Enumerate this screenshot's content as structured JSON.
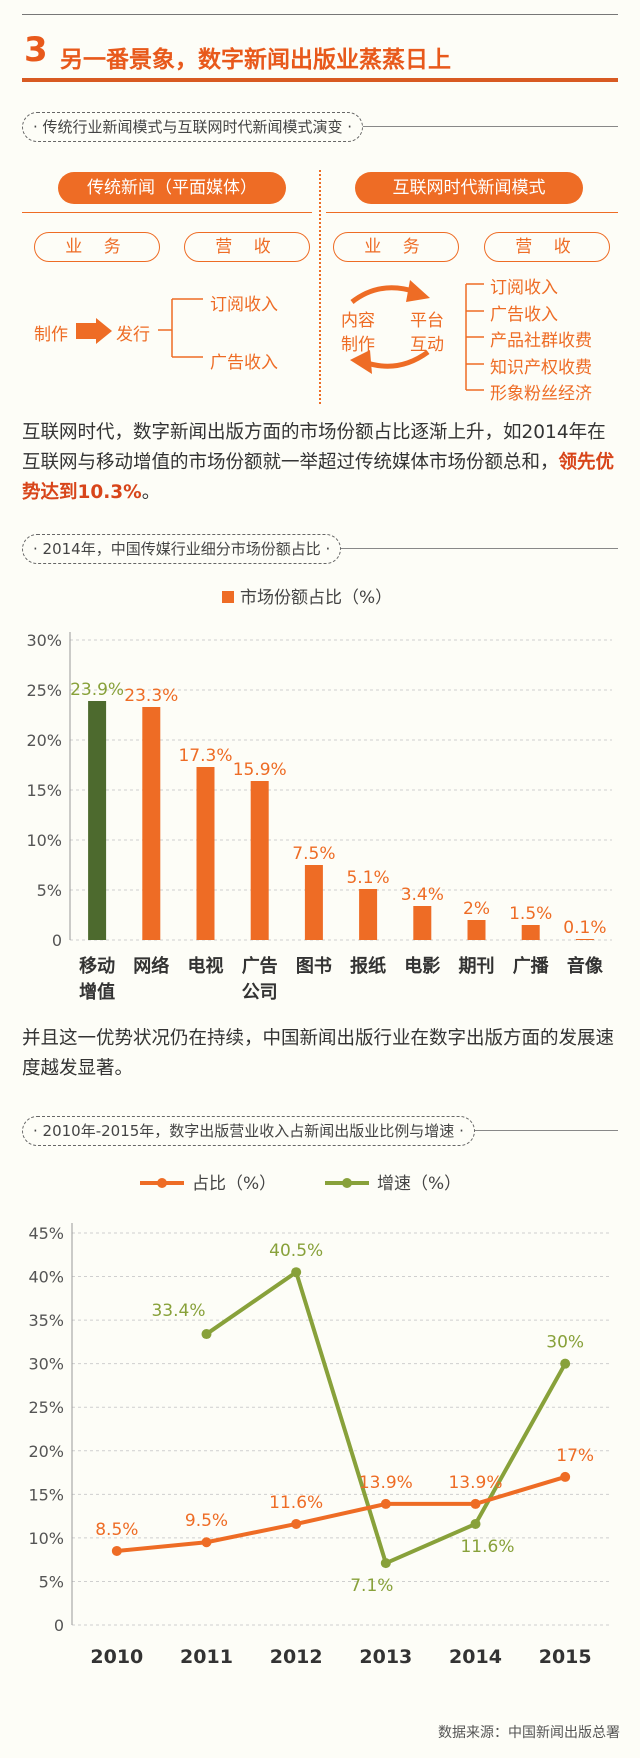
{
  "header": {
    "number": "3",
    "title": "另一番景象，数字新闻出版业蒸蒸日上"
  },
  "section1": {
    "pill": "· 传统行业新闻模式与互联网时代新闻模式演变 ·",
    "left": {
      "title": "传统新闻（平面媒体）",
      "business": "业 务",
      "revenue": "营 收",
      "flow": [
        "制作",
        "发行"
      ],
      "incomes": [
        "订阅收入",
        "广告收入"
      ]
    },
    "right": {
      "title": "互联网时代新闻模式",
      "business": "业 务",
      "revenue": "营 收",
      "cycle": [
        "内容",
        "制作",
        "平台",
        "互动"
      ],
      "incomes": [
        "订阅收入",
        "广告收入",
        "产品社群收费",
        "知识产权收费",
        "形象粉丝经济"
      ]
    }
  },
  "para1": {
    "text": "互联网时代，数字新闻出版方面的市场份额占比逐渐上升，如2014年在互联网与移动增值的市场份额就一举超过传统媒体市场份额总和，",
    "highlight": "领先优势达到10.3%",
    "end": "。"
  },
  "section2": {
    "pill": "· 2014年，中国传媒行业细分市场份额占比 ·"
  },
  "para2": {
    "text": "并且这一优势状况仍在持续，中国新闻出版行业在数字出版方面的发展速度越发显著。"
  },
  "section3": {
    "pill": "· 2010年-2015年，数字出版营业收入占新闻出版业比例与增速 ·"
  },
  "source": "数据来源：中国新闻出版总署",
  "colors": {
    "orange": "#ee6c25",
    "green": "#88a13a",
    "darkgreen": "#4d6a2e"
  },
  "chart_data": [
    {
      "type": "bar",
      "legend": "市场份额占比（%）",
      "categories": [
        "移动增值",
        "网络",
        "电视",
        "广告公司",
        "图书",
        "报纸",
        "电影",
        "期刊",
        "广播",
        "音像"
      ],
      "category_lines": [
        [
          "移动",
          "增值"
        ],
        [
          "网络"
        ],
        [
          "电视"
        ],
        [
          "广告",
          "公司"
        ],
        [
          "图书"
        ],
        [
          "报纸"
        ],
        [
          "电影"
        ],
        [
          "期刊"
        ],
        [
          "广播"
        ],
        [
          "音像"
        ]
      ],
      "values": [
        23.9,
        23.3,
        17.3,
        15.9,
        7.5,
        5.1,
        3.4,
        2,
        1.5,
        0.1
      ],
      "labels": [
        "23.9%",
        "23.3%",
        "17.3%",
        "15.9%",
        "7.5%",
        "5.1%",
        "3.4%",
        "2%",
        "1.5%",
        "0.1%"
      ],
      "ylim": [
        0,
        30
      ],
      "yticks": [
        "0",
        "5%",
        "10%",
        "15%",
        "20%",
        "25%",
        "30%"
      ],
      "grid": true
    },
    {
      "type": "line",
      "x": [
        "2010",
        "2011",
        "2012",
        "2013",
        "2014",
        "2015"
      ],
      "series": [
        {
          "name": "占比（%）",
          "values": [
            8.5,
            9.5,
            11.6,
            13.9,
            13.9,
            17
          ],
          "labels": [
            "8.5%",
            "9.5%",
            "11.6%",
            "13.9%",
            "13.9%",
            "17%"
          ]
        },
        {
          "name": "增速（%）",
          "values": [
            null,
            33.4,
            40.5,
            7.1,
            11.6,
            30
          ],
          "labels": [
            "",
            "33.4%",
            "40.5%",
            "7.1%",
            "11.6%",
            "30%"
          ]
        }
      ],
      "ylim": [
        0,
        45
      ],
      "yticks": [
        "0",
        "5%",
        "10%",
        "15%",
        "20%",
        "25%",
        "30%",
        "35%",
        "40%",
        "45%"
      ],
      "grid": true
    }
  ]
}
